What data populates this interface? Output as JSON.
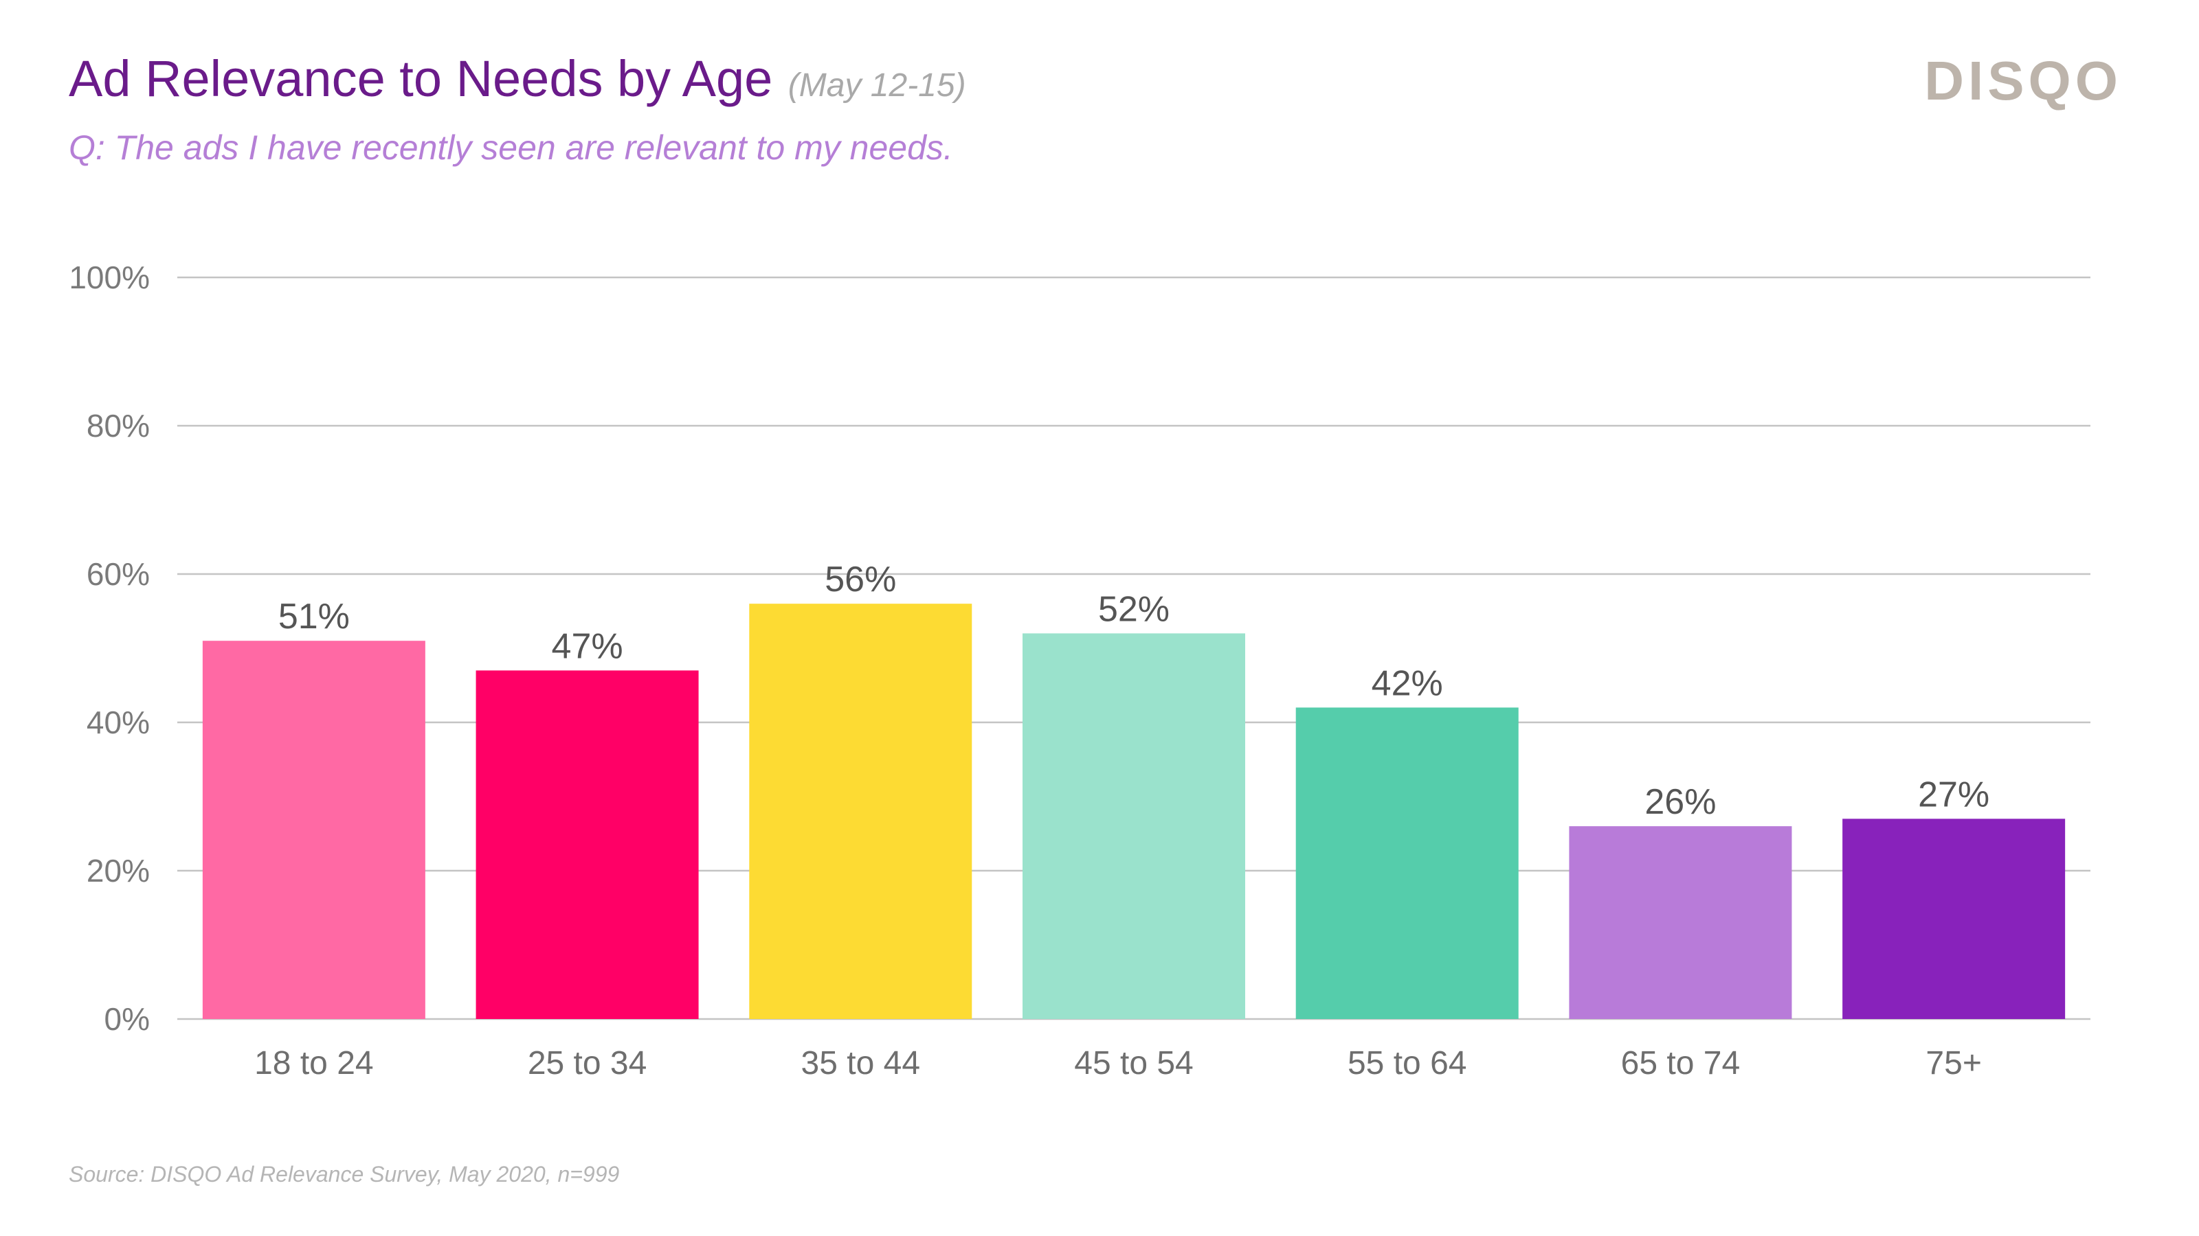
{
  "header": {
    "title": "Ad Relevance to Needs by Age",
    "date_range": "(May 12-15)",
    "subtitle": "Q: The ads I have recently seen are relevant to my needs.",
    "logo_text": "DISQO"
  },
  "footer": {
    "source": "Source: DISQO Ad Relevance Survey, May 2020, n=999"
  },
  "chart_data": {
    "type": "bar",
    "title": "",
    "xlabel": "",
    "ylabel": "",
    "categories": [
      "18 to 24",
      "25 to 34",
      "35 to 44",
      "45 to 54",
      "55 to 64",
      "65 to 74",
      "75+"
    ],
    "values": [
      51,
      47,
      56,
      52,
      42,
      26,
      27
    ],
    "value_labels": [
      "51%",
      "47%",
      "56%",
      "52%",
      "42%",
      "26%",
      "27%"
    ],
    "colors": [
      "#ff69a4",
      "#ff0066",
      "#fddb33",
      "#9ae2cc",
      "#55cdab",
      "#b87bd9",
      "#8822bb"
    ],
    "ylim": [
      0,
      100
    ],
    "yticks": [
      0,
      20,
      40,
      60,
      80,
      100
    ],
    "ytick_labels": [
      "0%",
      "20%",
      "40%",
      "60%",
      "80%",
      "100%"
    ],
    "grid": true,
    "legend": "none"
  }
}
